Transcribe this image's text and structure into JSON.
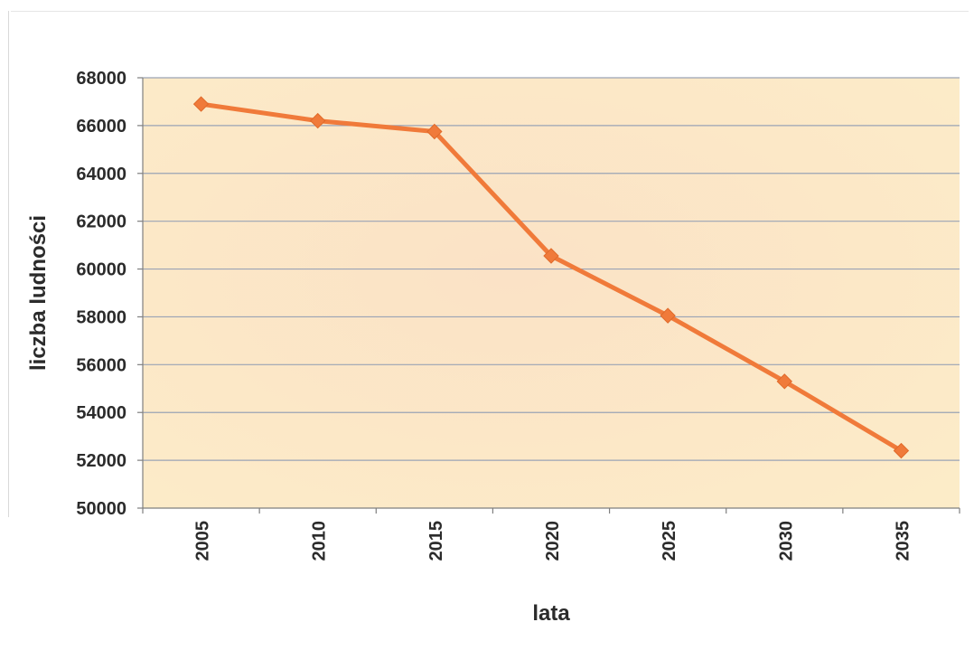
{
  "chart_data": {
    "type": "line",
    "xlabel": "lata",
    "ylabel": "liczba ludności",
    "categories": [
      "2005",
      "2010",
      "2015",
      "2020",
      "2025",
      "2030",
      "2035"
    ],
    "series": [
      {
        "values": [
          66900,
          66200,
          65750,
          60550,
          58050,
          55300,
          52400
        ]
      }
    ],
    "ylim": [
      50000,
      68000
    ],
    "yticks": [
      "50000",
      "52000",
      "54000",
      "56000",
      "58000",
      "60000",
      "62000",
      "64000",
      "66000",
      "68000"
    ],
    "grid": true,
    "legend": "none",
    "colors": {
      "line": "#f07a3a",
      "marker": "#f07a3a",
      "plot_background": "#fbe6c6",
      "gridline": "#9aa3b5"
    }
  }
}
